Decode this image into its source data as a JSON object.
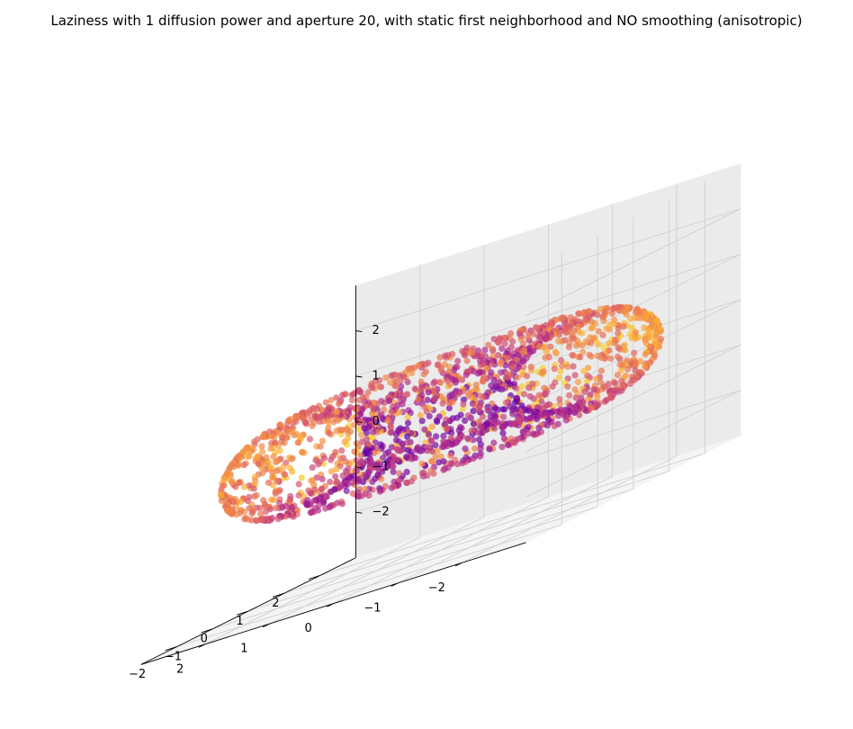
{
  "chart_data": {
    "type": "scatter",
    "projection": "3d",
    "title": "Laziness with 1 diffusion power and aperture 20, with static first neighborhood and NO smoothing (anisotropic)",
    "shape": "torus",
    "torus": {
      "major_radius": 2.0,
      "minor_radius": 1.0
    },
    "xlabel": "",
    "ylabel": "",
    "zlabel": "",
    "x_ticks": [
      -2,
      -1,
      0,
      1,
      2
    ],
    "y_ticks": [
      -2,
      -1,
      0,
      1,
      2
    ],
    "z_ticks": [
      -2,
      -1,
      0,
      1,
      2
    ],
    "x_tick_labels": [
      "−2",
      "−1",
      "0",
      "1",
      "2"
    ],
    "y_tick_labels": [
      "−2",
      "−1",
      "0",
      "1",
      "2"
    ],
    "z_tick_labels": [
      "−2",
      "−1",
      "0",
      "1",
      "2"
    ],
    "xlim": [
      -3,
      3
    ],
    "ylim": [
      -3,
      3
    ],
    "zlim": [
      -3,
      3
    ],
    "point_count": 2000,
    "colormap": "plasma",
    "colormap_stops": [
      "#0d0887",
      "#6a00a8",
      "#b12a90",
      "#e16462",
      "#fca636",
      "#f0f921"
    ],
    "color_range_used": [
      0.15,
      0.95
    ],
    "point_alpha": 0.7,
    "grid": true,
    "legend": "none"
  }
}
